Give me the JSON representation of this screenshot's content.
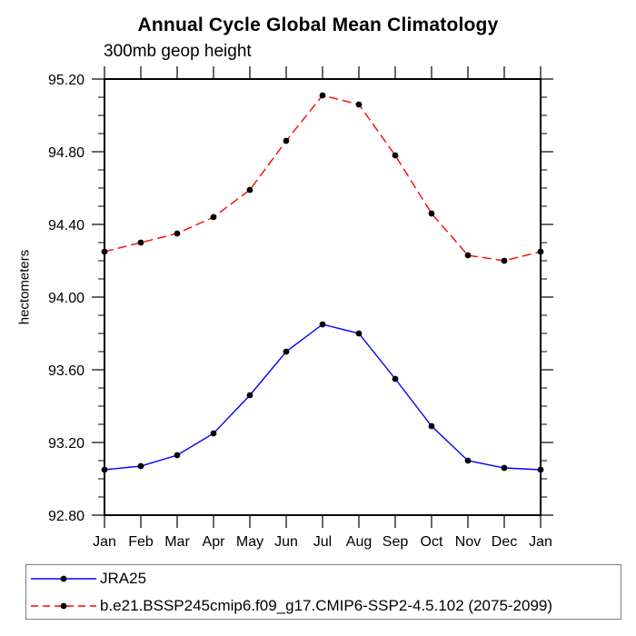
{
  "figure": {
    "title": "Annual Cycle Global Mean Climatology",
    "subtitle": "300mb geop height",
    "y_axis_label": "hectometers"
  },
  "legend": {
    "position": "bottom-left",
    "entries": [
      {
        "label": "JRA25",
        "line_color": "#0000ff",
        "line_style": "solid",
        "marker": "filled-circle",
        "marker_color": "#000000"
      },
      {
        "label": "b.e21.BSSP245cmip6.f09_g17.CMIP6-SSP2-4.5.102 (2075-2099)",
        "line_color": "#ff0000",
        "line_style": "dashed",
        "marker": "filled-circle",
        "marker_color": "#000000"
      }
    ]
  },
  "chart_data": {
    "type": "line",
    "title": "Annual Cycle Global Mean Climatology",
    "subtitle": "300mb geop height",
    "xlabel": "",
    "ylabel": "hectometers",
    "categories": [
      "Jan",
      "Feb",
      "Mar",
      "Apr",
      "May",
      "Jun",
      "Jul",
      "Aug",
      "Sep",
      "Oct",
      "Nov",
      "Dec",
      "Jan"
    ],
    "series": [
      {
        "name": "JRA25",
        "color": "#0000ff",
        "style": "solid",
        "values": [
          93.05,
          93.07,
          93.13,
          93.25,
          93.46,
          93.7,
          93.85,
          93.8,
          93.55,
          93.29,
          93.1,
          93.06,
          93.05
        ]
      },
      {
        "name": "b.e21.BSSP245cmip6.f09_g17.CMIP6-SSP2-4.5.102 (2075-2099)",
        "color": "#ff0000",
        "style": "dashed",
        "values": [
          94.25,
          94.3,
          94.35,
          94.44,
          94.59,
          94.86,
          95.11,
          95.06,
          94.78,
          94.46,
          94.23,
          94.2,
          94.25
        ]
      }
    ],
    "ylim": [
      92.8,
      95.2
    ],
    "ytick_labels": [
      "92.80",
      "93.20",
      "93.60",
      "94.00",
      "94.40",
      "94.80",
      "95.20"
    ],
    "ytick_major_interval": 0.4,
    "ytick_minor_interval": 0.1,
    "marker": "filled-circle",
    "marker_color": "#000000",
    "grid": false,
    "legend_position": "bottom-left",
    "axis_color": "#000000"
  }
}
